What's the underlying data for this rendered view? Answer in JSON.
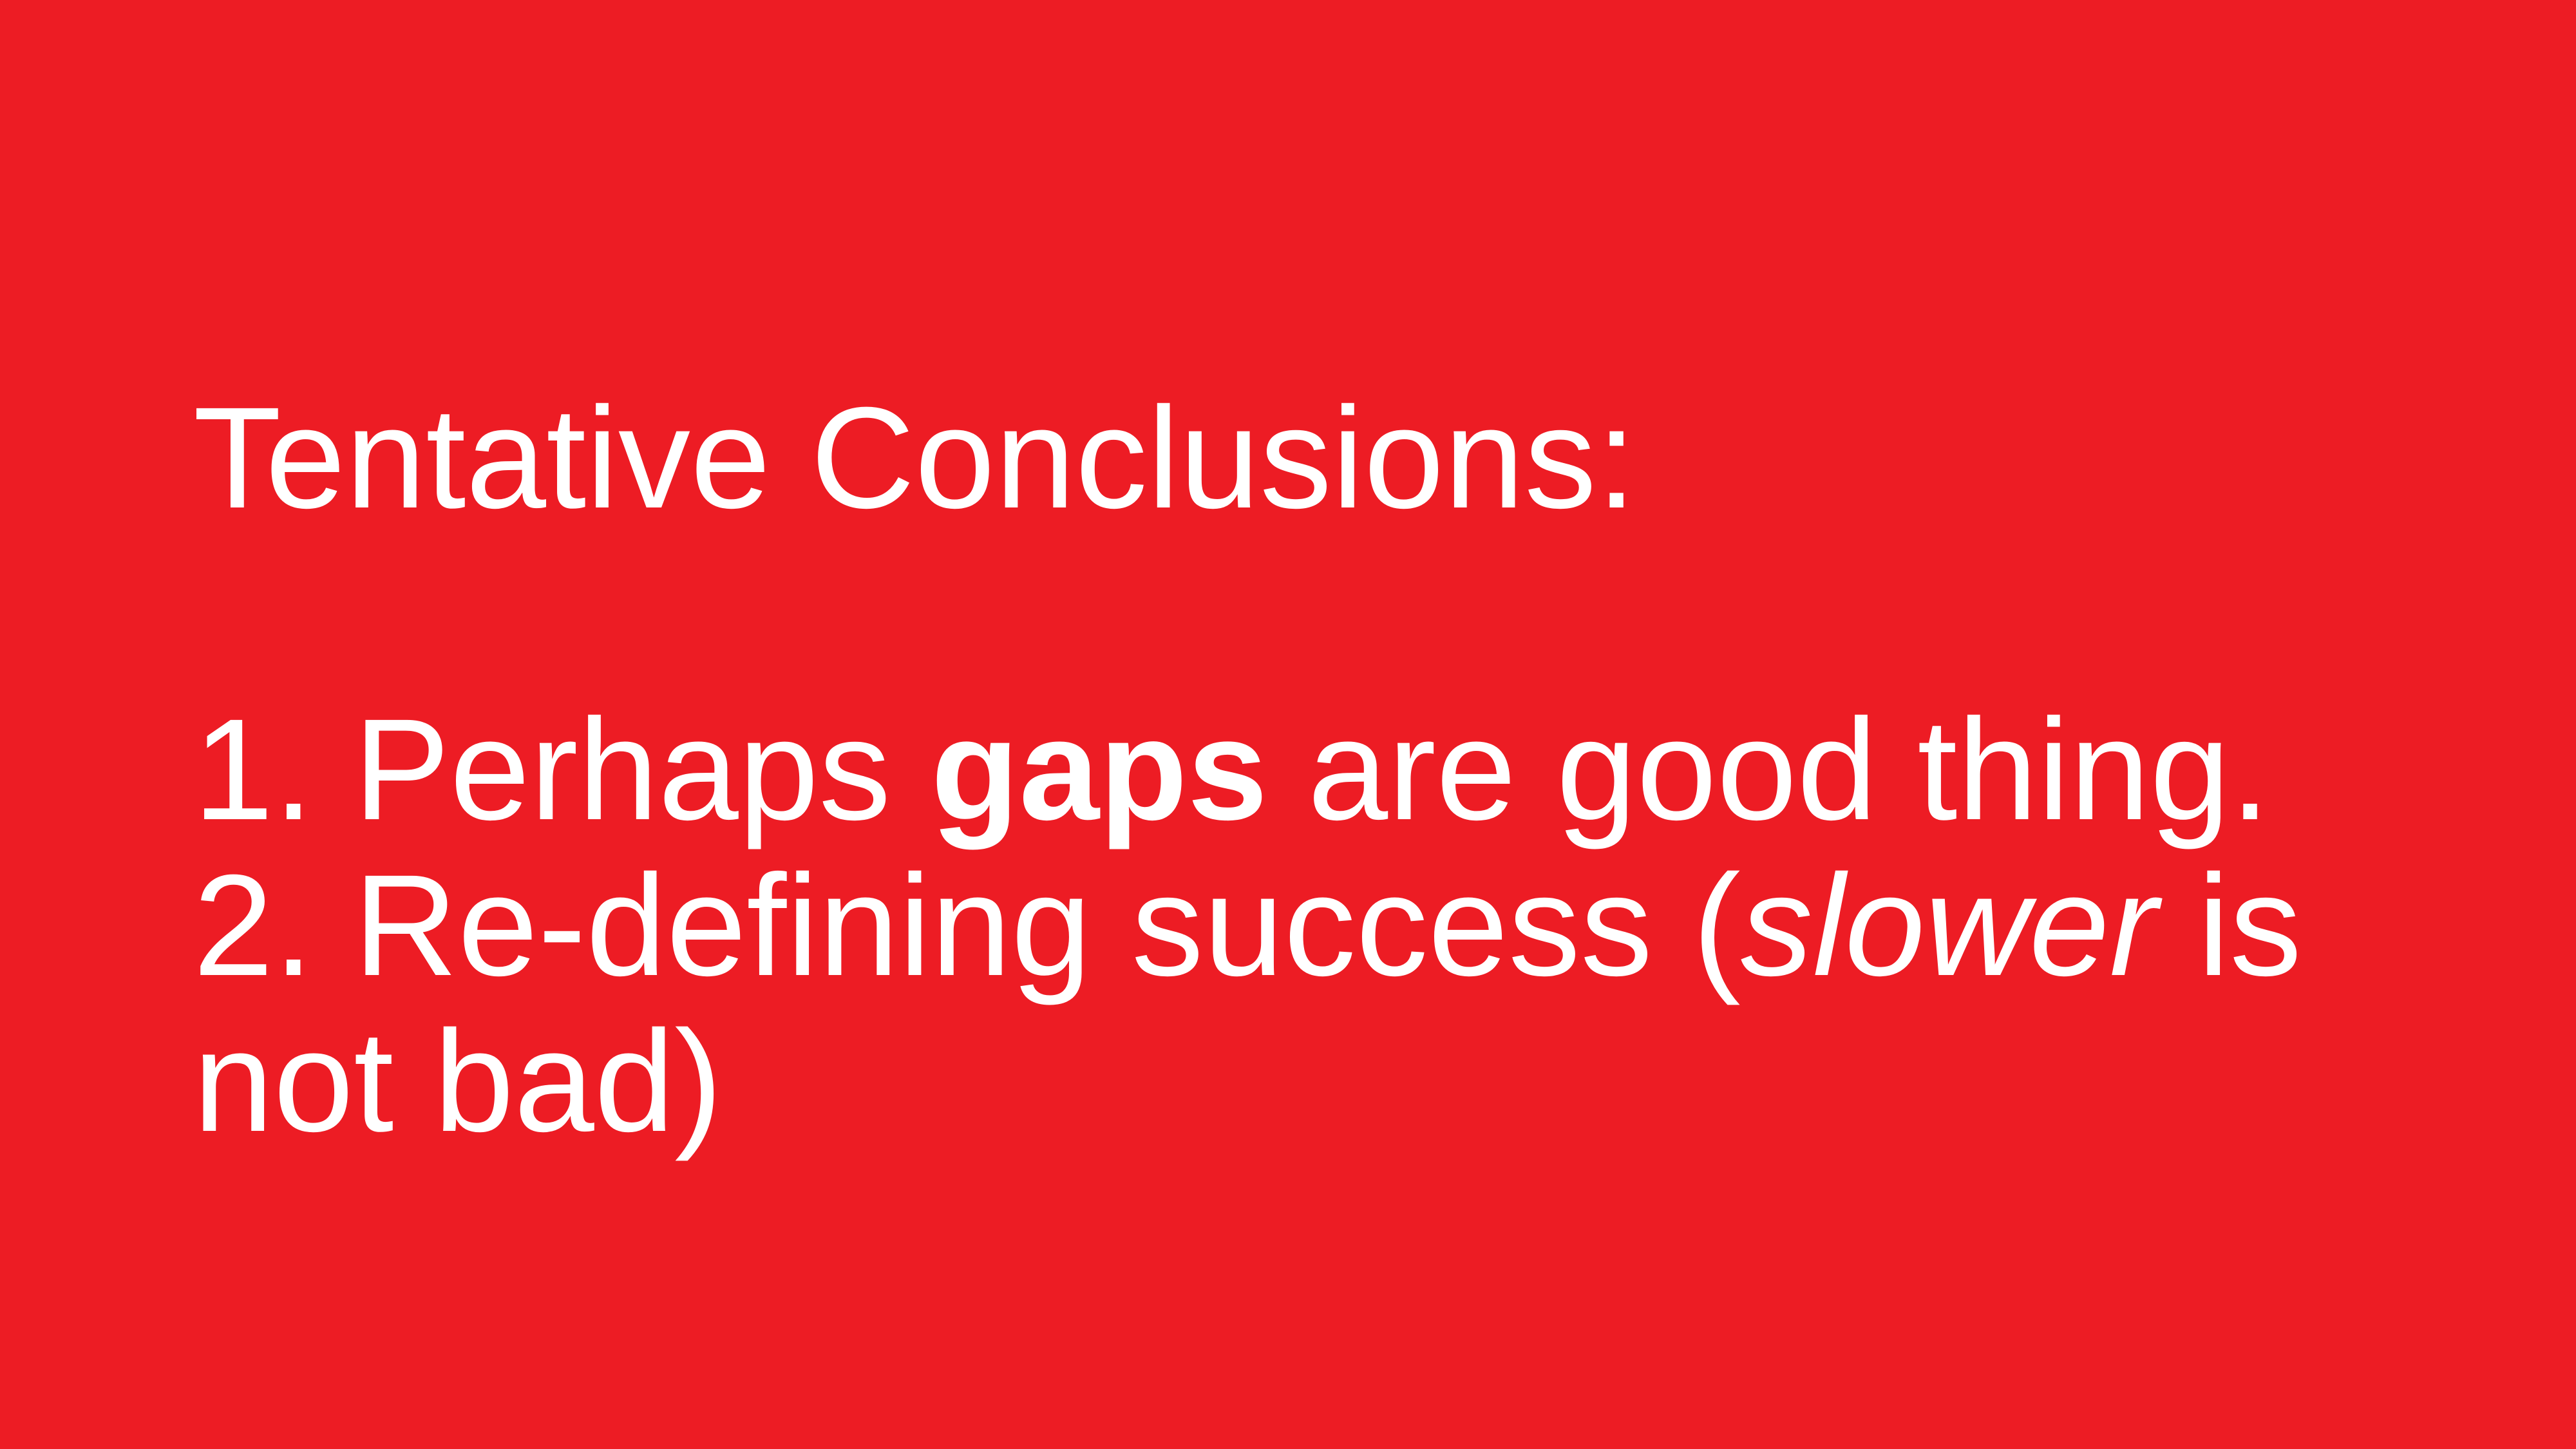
{
  "slide": {
    "background_color": "#ed1c24",
    "text_color": "#ffffff",
    "title": "Tentative Conclusions:",
    "items": [
      {
        "number": "1.",
        "text_before": "Perhaps",
        "bold": "gaps",
        "text_after": "are good thing."
      },
      {
        "number": "2.",
        "text_before": "Re-defining success (",
        "italic": "slower",
        "text_after_line1": "is",
        "text_after_line2": "not bad)"
      }
    ]
  }
}
